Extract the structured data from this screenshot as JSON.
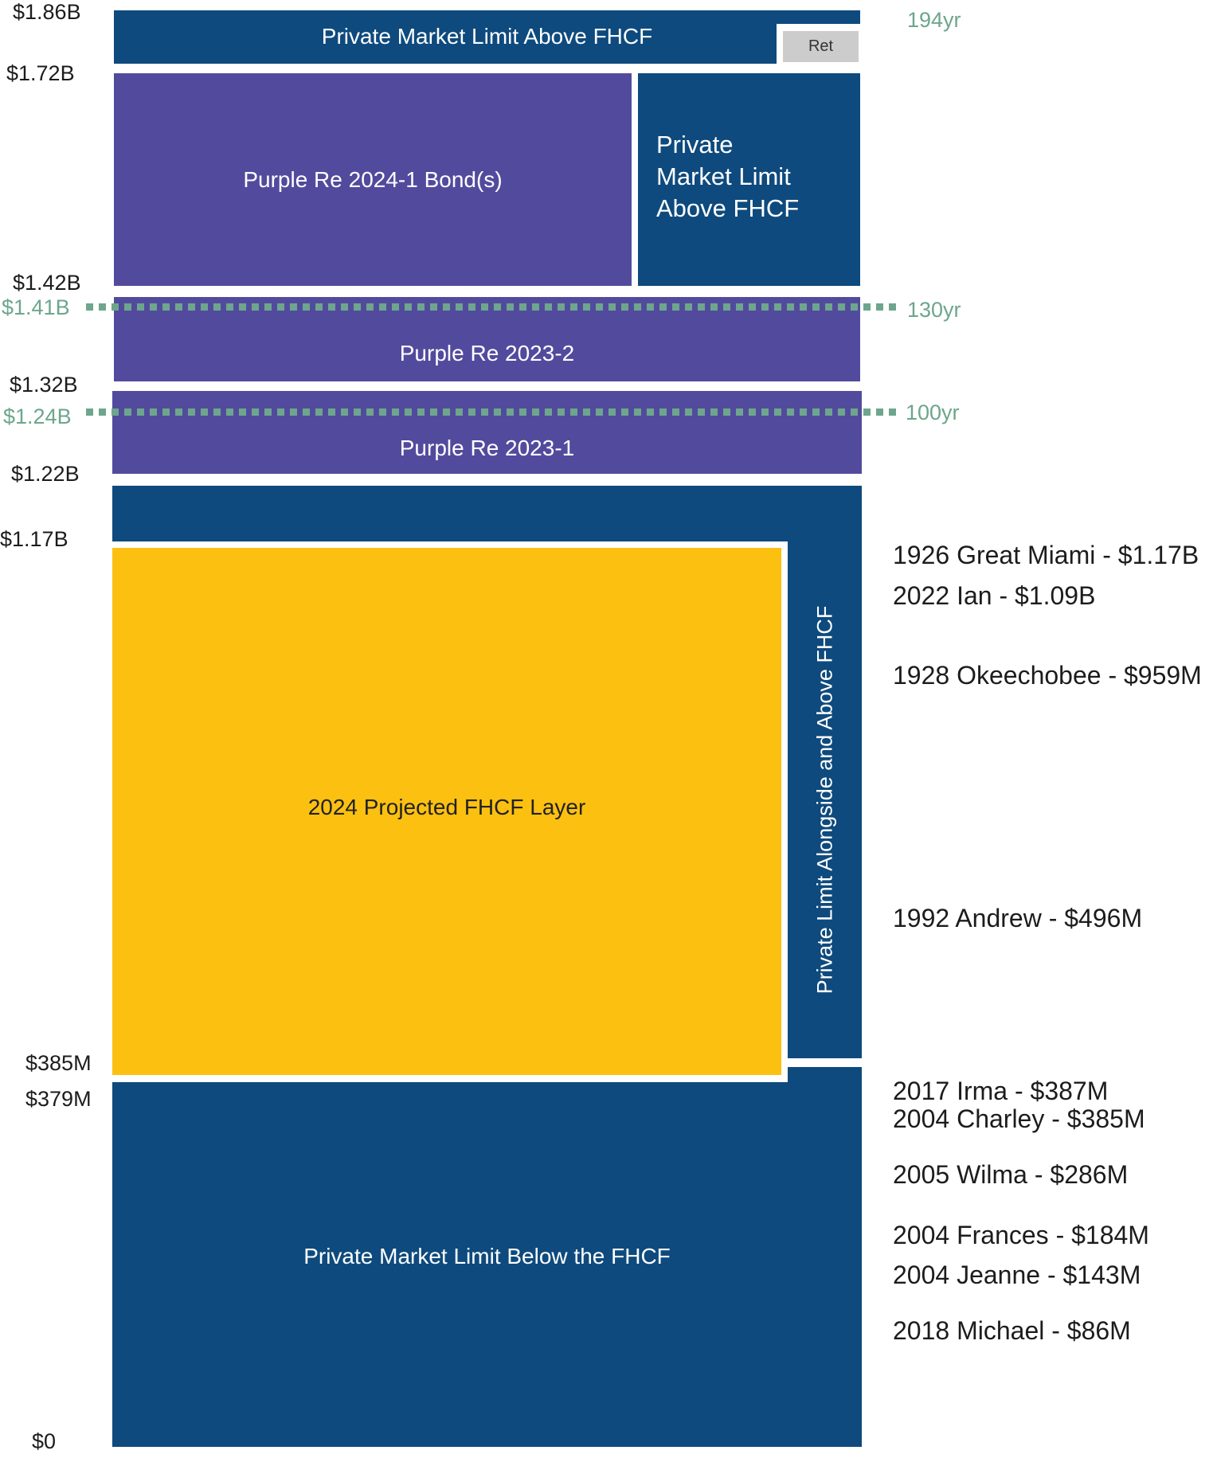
{
  "layers": {
    "top_private": "Private Market Limit Above FHCF",
    "ret": "Ret",
    "purple_2024_1": "Purple Re 2024-1 Bond(s)",
    "private_side_line1": "Private",
    "private_side_line2": "Market Limit",
    "private_side_line3": "Above FHCF",
    "purple_2023_2": "Purple Re 2023-2",
    "purple_2023_1": "Purple Re 2023-1",
    "fhcf_layer": "2024 Projected FHCF Layer",
    "alongside": "Private Limit Alongside and Above FHCF",
    "below_fhcf": "Private Market Limit Below the FHCF"
  },
  "y_labels": {
    "l186": "$1.86B",
    "l172": "$1.72B",
    "l142": "$1.42B",
    "l141": "$1.41B",
    "l132": "$1.32B",
    "l124": "$1.24B",
    "l122": "$1.22B",
    "l117": "$1.17B",
    "l385": "$385M",
    "l379": "$379M",
    "l0": "$0"
  },
  "return_periods": {
    "rp194": "194yr",
    "rp130": "130yr",
    "rp100": "100yr"
  },
  "storms": [
    "1926 Great Miami - $1.17B",
    "2022 Ian - $1.09B",
    "1928 Okeechobee - $959M",
    "1992 Andrew - $496M",
    "2017 Irma - $387M",
    "2004 Charley - $385M",
    "2005 Wilma - $286M",
    "2004 Frances - $184M",
    "2004 Jeanne - $143M",
    "2018 Michael - $86M"
  ],
  "colors": {
    "navy": "#0e4a7d",
    "purple": "#524b9d",
    "gold": "#fcc010",
    "grey": "#cccccc",
    "green": "#6da68c"
  }
}
